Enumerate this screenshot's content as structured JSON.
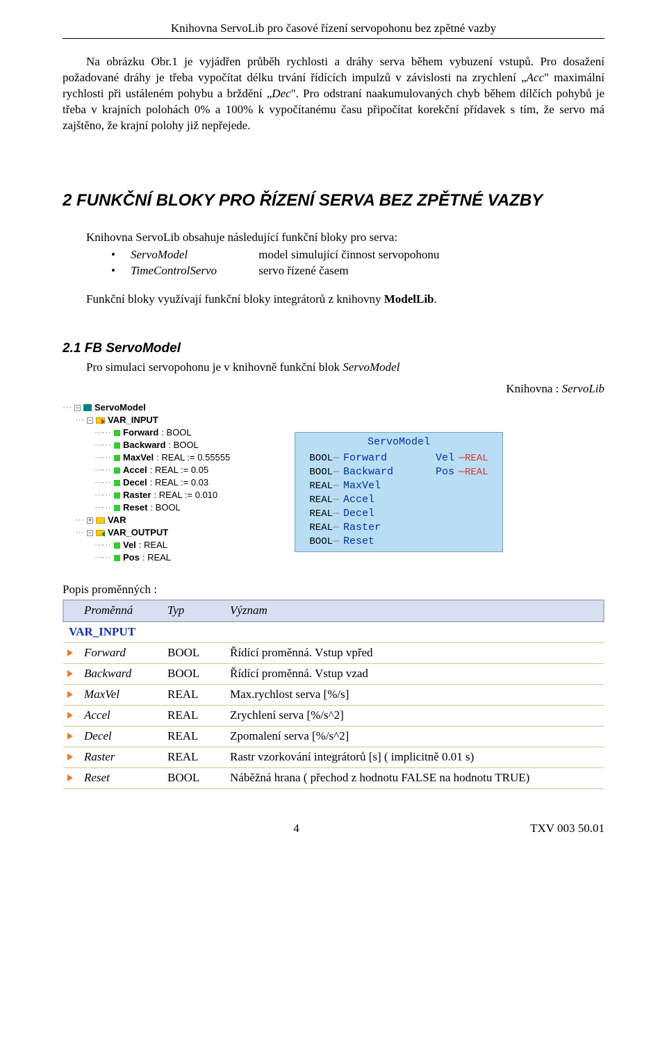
{
  "header": "Knihovna ServoLib pro časové  řízení servopohonu bez zpětné vazby",
  "para1_part1": "Na obrázku Obr.1 je vyjádřen průběh rychlosti a dráhy serva během vybuzení vstupů. Pro dosažení požadované dráhy je třeba vypočítat délku trvání řídících impulzů v závislosti na zrychlení „",
  "para1_acc": "Acc",
  "para1_part2": "\" maximální rychlosti při ustáleném pohybu a brždění „",
  "para1_dec": "Dec",
  "para1_part3": "\". Pro odstraní naakumulovaných chyb během dílčích pohybů je třeba v krajních polohách 0% a 100% k vypočítanému času  připočítat korekční přídavek s tím, že servo má zajštěno, že krajní polohy již nepřejede.",
  "h1": "2    FUNKČNÍ BLOKY PRO ŘÍZENÍ SERVA BEZ ZPĚTNÉ VAZBY",
  "intro": "Knihovna ServoLib obsahuje následující funkční bloky pro serva:",
  "fb_list": [
    {
      "name": "ServoModel",
      "desc": "model simulující činnost servopohonu"
    },
    {
      "name": "TimeControlServo",
      "desc": "servo řízené časem"
    }
  ],
  "note_p1": "Funkční bloky využívají funkční bloky integrátorů z knihovny ",
  "note_bold": "ModelLib",
  "note_p2": ".",
  "h2": "2.1   FB ServoModel",
  "sub_p1": "Pro simulaci servopohonu je v knihovně funkční blok ",
  "sub_it": "ServoModel",
  "lib_label": "Knihovna : ",
  "lib_name": "ServoLib",
  "tree": {
    "root": "ServoModel",
    "var_input": "VAR_INPUT",
    "inputs": [
      {
        "name": "Forward",
        "type": ": BOOL"
      },
      {
        "name": "Backward",
        "type": ": BOOL"
      },
      {
        "name": "MaxVel",
        "type": ": REAL := 0.55555"
      },
      {
        "name": "Accel",
        "type": ": REAL := 0.05"
      },
      {
        "name": "Decel",
        "type": ": REAL := 0.03"
      },
      {
        "name": "Raster",
        "type": ": REAL := 0.010"
      },
      {
        "name": "Reset",
        "type": ": BOOL"
      }
    ],
    "var": "VAR",
    "var_output": "VAR_OUTPUT",
    "outputs": [
      {
        "name": "Vel",
        "type": ": REAL"
      },
      {
        "name": "Pos",
        "type": ": REAL"
      }
    ]
  },
  "block": {
    "title": "ServoModel",
    "rows": [
      {
        "lt": "BOOL",
        "ln": "Forward",
        "rn": "Vel",
        "rt": "REAL"
      },
      {
        "lt": "BOOL",
        "ln": "Backward",
        "rn": "Pos",
        "rt": "REAL"
      },
      {
        "lt": "REAL",
        "ln": "MaxVel",
        "rn": "",
        "rt": ""
      },
      {
        "lt": "REAL",
        "ln": "Accel",
        "rn": "",
        "rt": ""
      },
      {
        "lt": "REAL",
        "ln": "Decel",
        "rn": "",
        "rt": ""
      },
      {
        "lt": "REAL",
        "ln": "Raster",
        "rn": "",
        "rt": ""
      },
      {
        "lt": "BOOL",
        "ln": "Reset",
        "rn": "",
        "rt": ""
      }
    ]
  },
  "popis": "Popis proměnných :",
  "th": {
    "c1": "Proměnná",
    "c2": "Typ",
    "c3": "Význam"
  },
  "section": "VAR_INPUT",
  "rows": [
    {
      "n": "Forward",
      "t": "BOOL",
      "d": "Řídící proměnná. Vstup vpřed"
    },
    {
      "n": "Backward",
      "t": "BOOL",
      "d": "Řídící proměnná. Vstup vzad"
    },
    {
      "n": "MaxVel",
      "t": "REAL",
      "d": "Max.rychlost serva [%/s]"
    },
    {
      "n": "Accel",
      "t": "REAL",
      "d": "Zrychlení serva [%/s^2]"
    },
    {
      "n": "Decel",
      "t": "REAL",
      "d": "Zpomalení serva [%/s^2]"
    },
    {
      "n": "Raster",
      "t": "REAL",
      "d": "Rastr vzorkování integrátorů [s] ( implicitně 0.01 s)"
    },
    {
      "n": "Reset",
      "t": "BOOL",
      "d": "Náběžná hrana ( přechod z hodnotu FALSE na hodnotu TRUE)"
    }
  ],
  "footer": {
    "page": "4",
    "doc": "TXV 003 50.01"
  }
}
